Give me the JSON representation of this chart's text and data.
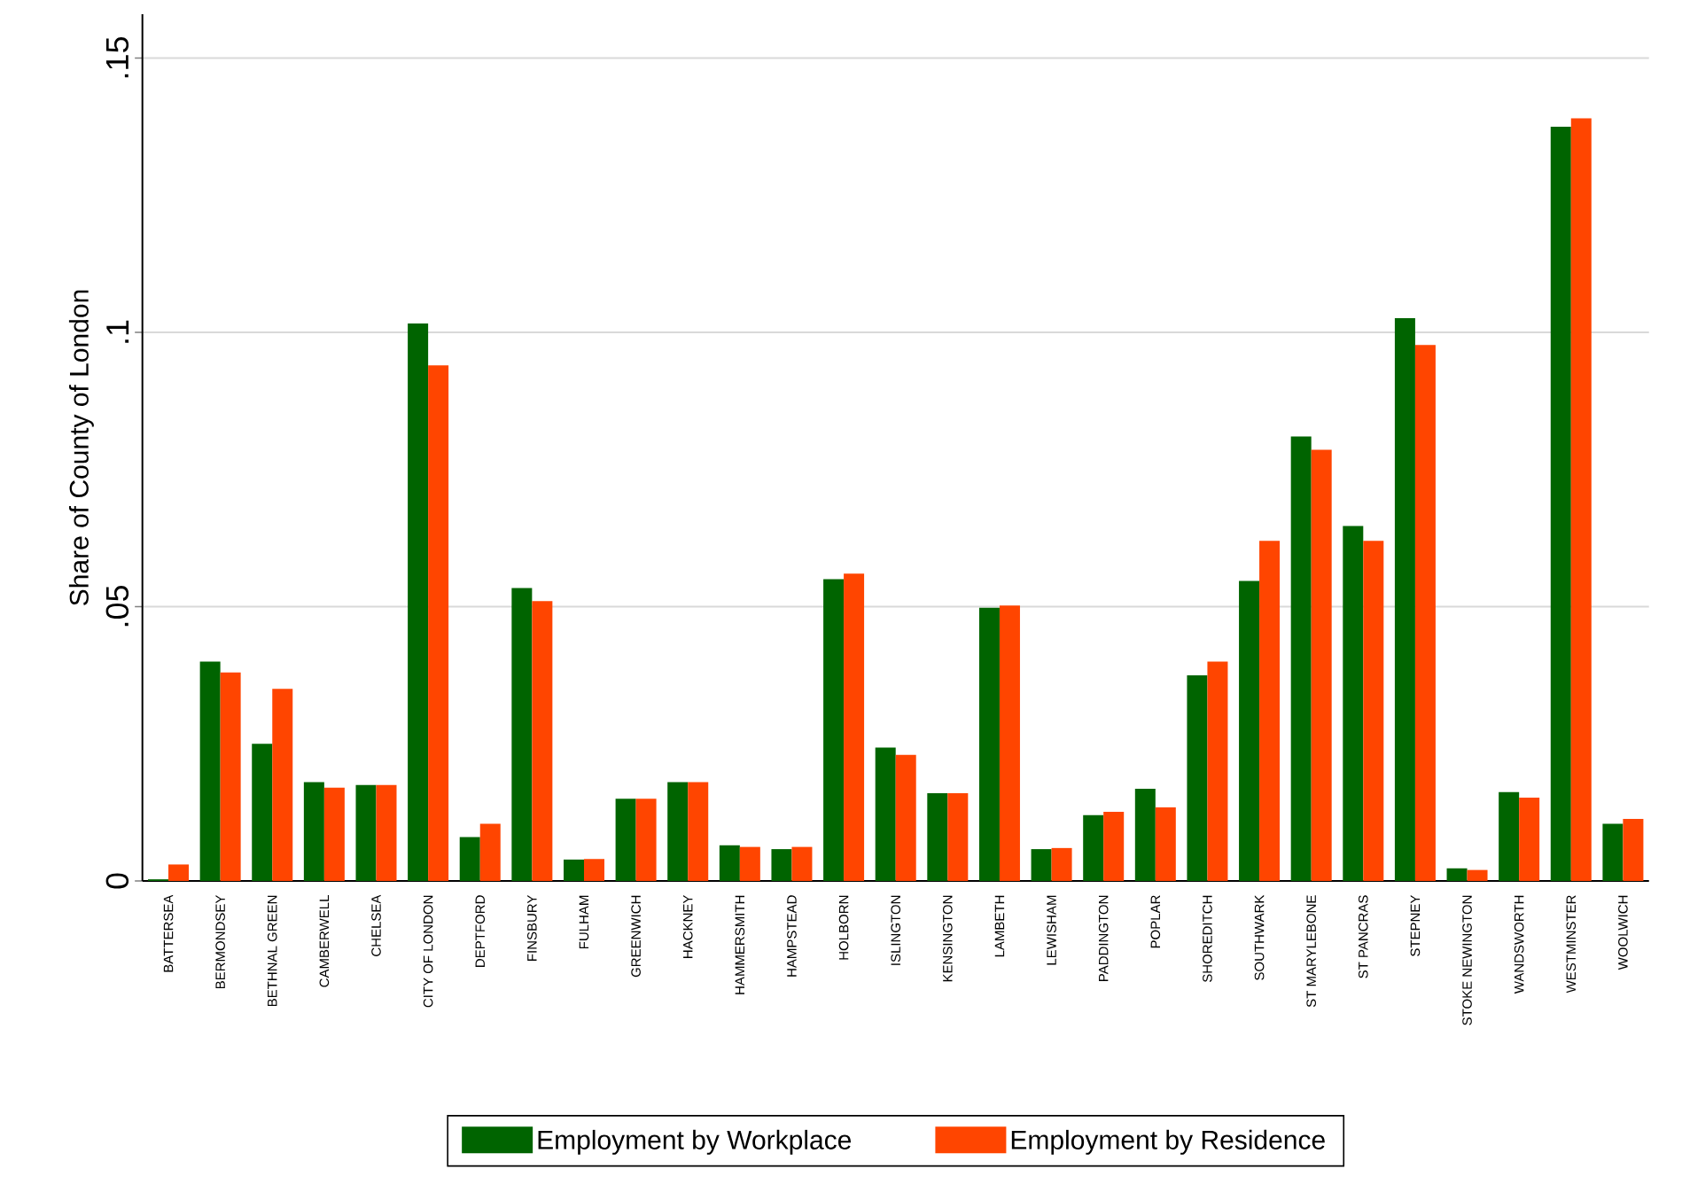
{
  "chart_data": {
    "type": "bar",
    "ylabel": "Share of County of London",
    "categories": [
      "BATTERSEA",
      "BERMONDSEY",
      "BETHNAL GREEN",
      "CAMBERWELL",
      "CHELSEA",
      "CITY OF LONDON",
      "DEPTFORD",
      "FINSBURY",
      "FULHAM",
      "GREENWICH",
      "HACKNEY",
      "HAMMERSMITH",
      "HAMPSTEAD",
      "HOLBORN",
      "ISLINGTON",
      "KENSINGTON",
      "LAMBETH",
      "LEWISHAM",
      "PADDINGTON",
      "POPLAR",
      "SHOREDITCH",
      "SOUTHWARK",
      "ST MARYLEBONE",
      "ST PANCRAS",
      "STEPNEY",
      "STOKE NEWINGTON",
      "WANDSWORTH",
      "WESTMINSTER",
      "WOOLWICH"
    ],
    "series": [
      {
        "name": "Employment by Workplace",
        "color": "#006400",
        "values": [
          0.0003,
          0.04,
          0.025,
          0.018,
          0.0175,
          0.1016,
          0.008,
          0.0534,
          0.0039,
          0.015,
          0.018,
          0.0065,
          0.0058,
          0.055,
          0.0243,
          0.016,
          0.0498,
          0.0058,
          0.012,
          0.0168,
          0.0375,
          0.0547,
          0.081,
          0.0647,
          0.1026,
          0.0023,
          0.0162,
          0.1375,
          0.0104
        ]
      },
      {
        "name": "Employment by Residence",
        "color": "#ff4500",
        "values": [
          0.003,
          0.038,
          0.035,
          0.017,
          0.0175,
          0.094,
          0.0104,
          0.051,
          0.004,
          0.015,
          0.018,
          0.0062,
          0.0062,
          0.056,
          0.023,
          0.016,
          0.0502,
          0.006,
          0.0126,
          0.0134,
          0.04,
          0.062,
          0.0786,
          0.062,
          0.0977,
          0.002,
          0.0152,
          0.139,
          0.0113
        ]
      }
    ],
    "ylim": [
      0,
      0.158
    ],
    "yticks": [
      {
        "value": 0,
        "label": "0"
      },
      {
        "value": 0.05,
        "label": ".05"
      },
      {
        "value": 0.1,
        "label": ".1"
      },
      {
        "value": 0.15,
        "label": ".15"
      }
    ],
    "grid": "y",
    "legend": "bottom"
  }
}
